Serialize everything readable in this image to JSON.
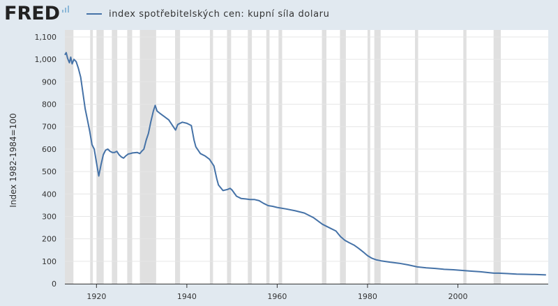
{
  "header": {
    "logo_text": "FRED",
    "legend_label": "index spotřebitelských cen: kupní síla dolaru"
  },
  "colors": {
    "series": "#4572a7",
    "background": "#e1e9f0",
    "plot_bg": "#ffffff",
    "recession": "#e0e0e0",
    "grid": "#e6e6e6"
  },
  "chart_data": {
    "type": "line",
    "title": "",
    "xlabel": "",
    "ylabel": "Index 1982-1984=100",
    "xlim": [
      1913,
      2020
    ],
    "ylim": [
      0,
      1100
    ],
    "y_ticks": [
      0,
      100,
      200,
      300,
      400,
      500,
      600,
      700,
      800,
      900,
      1000,
      1100
    ],
    "y_tick_labels": [
      "0",
      "100",
      "200",
      "300",
      "400",
      "500",
      "600",
      "700",
      "800",
      "900",
      "1,000",
      "1,100"
    ],
    "x_ticks": [
      1920,
      1940,
      1960,
      1980,
      2000
    ],
    "x_tick_labels": [
      "1920",
      "1940",
      "1960",
      "1980",
      "2000"
    ],
    "grid": "horizontal",
    "legend": "top-left",
    "recessions": [
      [
        1913.0,
        1914.9
      ],
      [
        1918.6,
        1919.2
      ],
      [
        1920.0,
        1921.6
      ],
      [
        1923.4,
        1924.6
      ],
      [
        1926.8,
        1927.9
      ],
      [
        1929.6,
        1933.2
      ],
      [
        1937.4,
        1938.5
      ],
      [
        1945.1,
        1945.8
      ],
      [
        1948.9,
        1949.8
      ],
      [
        1953.5,
        1954.4
      ],
      [
        1957.6,
        1958.3
      ],
      [
        1960.3,
        1961.1
      ],
      [
        1969.9,
        1970.9
      ],
      [
        1973.9,
        1975.2
      ],
      [
        1980.0,
        1980.6
      ],
      [
        1981.5,
        1982.9
      ],
      [
        1990.5,
        1991.2
      ],
      [
        2001.2,
        2001.9
      ],
      [
        2007.9,
        2009.5
      ]
    ],
    "series": [
      {
        "values": [
          [
            1913.0,
            1020
          ],
          [
            1913.3,
            1030
          ],
          [
            1913.6,
            1005
          ],
          [
            1914.0,
            985
          ],
          [
            1914.3,
            1010
          ],
          [
            1914.6,
            980
          ],
          [
            1915.0,
            1000
          ],
          [
            1915.5,
            990
          ],
          [
            1916.0,
            960
          ],
          [
            1916.5,
            920
          ],
          [
            1917.0,
            850
          ],
          [
            1917.5,
            780
          ],
          [
            1918.0,
            730
          ],
          [
            1918.5,
            680
          ],
          [
            1919.0,
            620
          ],
          [
            1919.5,
            600
          ],
          [
            1920.0,
            540
          ],
          [
            1920.5,
            480
          ],
          [
            1921.0,
            530
          ],
          [
            1921.5,
            575
          ],
          [
            1922.0,
            595
          ],
          [
            1922.5,
            600
          ],
          [
            1923.0,
            590
          ],
          [
            1923.5,
            585
          ],
          [
            1924.0,
            585
          ],
          [
            1924.5,
            590
          ],
          [
            1925.0,
            575
          ],
          [
            1925.5,
            565
          ],
          [
            1926.0,
            560
          ],
          [
            1926.5,
            570
          ],
          [
            1927.0,
            578
          ],
          [
            1927.5,
            580
          ],
          [
            1928.0,
            583
          ],
          [
            1929.0,
            585
          ],
          [
            1929.6,
            580
          ],
          [
            1930.0,
            590
          ],
          [
            1930.5,
            600
          ],
          [
            1931.0,
            640
          ],
          [
            1931.5,
            670
          ],
          [
            1932.0,
            720
          ],
          [
            1932.6,
            770
          ],
          [
            1933.0,
            795
          ],
          [
            1933.4,
            770
          ],
          [
            1934.0,
            760
          ],
          [
            1935.0,
            745
          ],
          [
            1936.0,
            730
          ],
          [
            1937.0,
            700
          ],
          [
            1937.5,
            685
          ],
          [
            1938.0,
            710
          ],
          [
            1939.0,
            720
          ],
          [
            1940.0,
            715
          ],
          [
            1941.0,
            705
          ],
          [
            1941.6,
            640
          ],
          [
            1942.0,
            610
          ],
          [
            1943.0,
            580
          ],
          [
            1944.0,
            570
          ],
          [
            1945.0,
            555
          ],
          [
            1946.0,
            525
          ],
          [
            1946.6,
            470
          ],
          [
            1947.0,
            440
          ],
          [
            1948.0,
            415
          ],
          [
            1949.0,
            420
          ],
          [
            1949.6,
            425
          ],
          [
            1950.0,
            418
          ],
          [
            1951.0,
            390
          ],
          [
            1952.0,
            380
          ],
          [
            1953.0,
            378
          ],
          [
            1954.0,
            375
          ],
          [
            1955.0,
            375
          ],
          [
            1956.0,
            370
          ],
          [
            1957.0,
            358
          ],
          [
            1958.0,
            348
          ],
          [
            1959.0,
            345
          ],
          [
            1960.0,
            340
          ],
          [
            1962.0,
            333
          ],
          [
            1964.0,
            325
          ],
          [
            1966.0,
            315
          ],
          [
            1968.0,
            295
          ],
          [
            1970.0,
            265
          ],
          [
            1972.0,
            245
          ],
          [
            1973.0,
            235
          ],
          [
            1974.0,
            210
          ],
          [
            1975.0,
            193
          ],
          [
            1976.0,
            182
          ],
          [
            1977.0,
            172
          ],
          [
            1978.0,
            158
          ],
          [
            1979.0,
            142
          ],
          [
            1980.0,
            125
          ],
          [
            1981.0,
            113
          ],
          [
            1982.0,
            106
          ],
          [
            1983.0,
            102
          ],
          [
            1985.0,
            96
          ],
          [
            1987.0,
            91
          ],
          [
            1989.0,
            84
          ],
          [
            1991.0,
            75
          ],
          [
            1993.0,
            71
          ],
          [
            1995.0,
            68
          ],
          [
            1997.0,
            64
          ],
          [
            1999.0,
            62
          ],
          [
            2001.0,
            59
          ],
          [
            2003.0,
            56
          ],
          [
            2005.0,
            53
          ],
          [
            2007.0,
            49
          ],
          [
            2008.0,
            47
          ],
          [
            2009.0,
            47
          ],
          [
            2011.0,
            45
          ],
          [
            2013.0,
            43
          ],
          [
            2015.0,
            42
          ],
          [
            2017.0,
            41
          ],
          [
            2019.5,
            39
          ]
        ]
      }
    ]
  }
}
